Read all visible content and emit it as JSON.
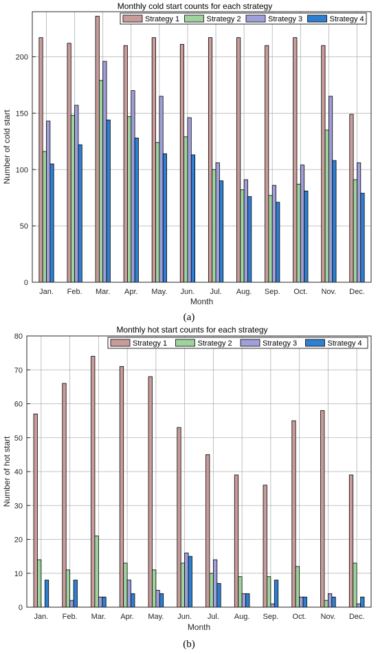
{
  "panels": [
    {
      "label": "(a)"
    },
    {
      "label": "(b)"
    }
  ],
  "chart_data": [
    {
      "type": "bar",
      "title": "Monthly cold start counts for each strategy",
      "xlabel": "Month",
      "ylabel": "Number of cold start",
      "ylim": [
        0,
        240
      ],
      "yticks": [
        0,
        50,
        100,
        150,
        200
      ],
      "grid": true,
      "legend_position": "top",
      "categories": [
        "Jan.",
        "Feb.",
        "Mar.",
        "Apr.",
        "May.",
        "Jun.",
        "Jul.",
        "Aug.",
        "Sep.",
        "Oct.",
        "Nov.",
        "Dec."
      ],
      "series": [
        {
          "name": "Strategy 1",
          "color": "#c99b9b",
          "values": [
            217,
            212,
            236,
            210,
            217,
            211,
            217,
            217,
            210,
            217,
            210,
            149
          ]
        },
        {
          "name": "Strategy 2",
          "color": "#9ed39e",
          "values": [
            116,
            148,
            179,
            147,
            124,
            129,
            100,
            82,
            77,
            87,
            135,
            91
          ]
        },
        {
          "name": "Strategy 3",
          "color": "#9f9fd9",
          "values": [
            143,
            157,
            196,
            170,
            165,
            146,
            106,
            91,
            86,
            104,
            165,
            106
          ]
        },
        {
          "name": "Strategy 4",
          "color": "#2f7fd0",
          "values": [
            105,
            122,
            144,
            128,
            114,
            113,
            90,
            76,
            71,
            81,
            108,
            79
          ]
        }
      ]
    },
    {
      "type": "bar",
      "title": "Monthly hot start counts for each strategy",
      "xlabel": "Month",
      "ylabel": "Number of hot start",
      "ylim": [
        0,
        80
      ],
      "yticks": [
        0,
        10,
        20,
        30,
        40,
        50,
        60,
        70,
        80
      ],
      "grid": true,
      "legend_position": "top",
      "categories": [
        "Jan.",
        "Feb.",
        "Mar.",
        "Apr.",
        "May.",
        "Jun.",
        "Jul.",
        "Aug.",
        "Sep.",
        "Oct.",
        "Nov.",
        "Dec."
      ],
      "series": [
        {
          "name": "Strategy 1",
          "color": "#c99b9b",
          "values": [
            57,
            66,
            74,
            71,
            68,
            53,
            45,
            39,
            36,
            55,
            58,
            39
          ]
        },
        {
          "name": "Strategy 2",
          "color": "#9ed39e",
          "values": [
            14,
            11,
            21,
            13,
            11,
            13,
            10,
            9,
            9,
            12,
            2,
            13
          ]
        },
        {
          "name": "Strategy 3",
          "color": "#9f9fd9",
          "values": [
            0,
            2,
            3,
            8,
            5,
            16,
            14,
            4,
            1,
            3,
            4,
            1
          ]
        },
        {
          "name": "Strategy 4",
          "color": "#2f7fd0",
          "values": [
            8,
            8,
            3,
            4,
            4,
            15,
            7,
            4,
            8,
            3,
            3,
            3
          ]
        }
      ]
    }
  ]
}
